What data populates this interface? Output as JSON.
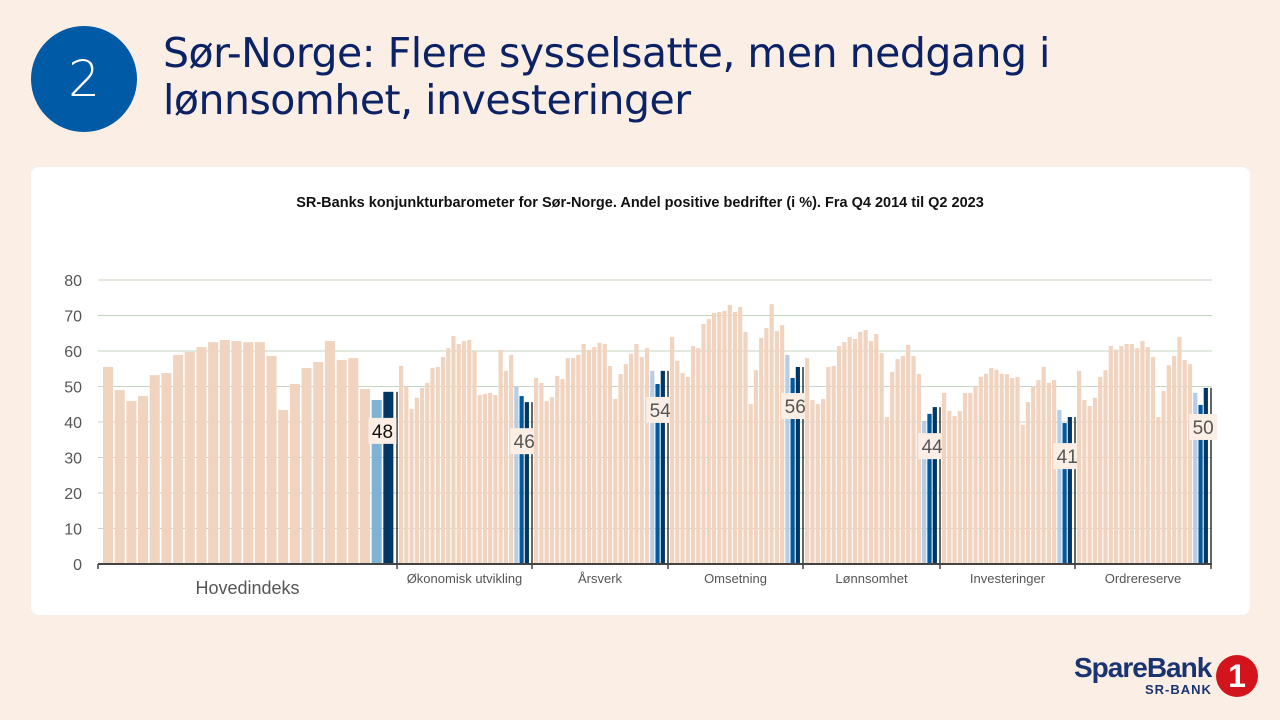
{
  "header": {
    "badge_number": "2",
    "title": "Sør-Norge: Flere sysselsatte, men nedgang i lønnsomhet, investeringer"
  },
  "logo": {
    "name": "SpareBank",
    "sub": "SR-BANK",
    "mark": "1"
  },
  "chart_data": {
    "type": "bar",
    "title": "SR-Banks konjunkturbarometer  for Sør-Norge.  Andel positive bedrifter (i %). Fra Q4 2014 til Q2 2023",
    "ylim": [
      0,
      80
    ],
    "yticks": [
      "0",
      "10",
      "20",
      "30",
      "40",
      "50",
      "60",
      "70",
      "80"
    ],
    "grid": true,
    "colors": {
      "history": "#f1d4bf",
      "hov_prev": "#7fb3d5",
      "prev2": "#b6cde8",
      "prev1": "#005aa0",
      "latest": "#003764",
      "grid": "#c5d6c0"
    },
    "groups": [
      {
        "name": "Hovedindeks",
        "label": "48",
        "values": [
          55.5,
          49,
          45.9,
          47.3,
          53.2,
          53.8,
          58.9,
          59.7,
          61.1,
          62.5,
          63.1,
          62.8,
          62.5,
          62.5,
          58.6,
          43.4,
          50.7,
          55.2,
          56.9,
          62.8,
          57.5,
          58,
          49.3,
          46.2,
          48.5
        ]
      },
      {
        "name": "Økonomisk utvikling",
        "label": "46",
        "values": [
          55.8,
          49.9,
          43.7,
          46.8,
          49.6,
          51,
          55.2,
          55.5,
          58.3,
          60.8,
          64.2,
          62,
          62.8,
          63.1,
          60,
          47.6,
          47.9,
          48.2,
          47.6,
          60.3,
          54.4,
          58.9,
          49.9,
          47.3,
          45.6
        ]
      },
      {
        "name": "Årsverk",
        "label": "54",
        "values": [
          52.4,
          51,
          45.9,
          47,
          53,
          52.1,
          58,
          58,
          58.9,
          62,
          60.3,
          61.1,
          62.3,
          62,
          55.8,
          46.5,
          53.5,
          56.3,
          59.2,
          62,
          58.3,
          60.8,
          54.4,
          50.7,
          54.4
        ]
      },
      {
        "name": "Omsetning",
        "label": "56",
        "values": [
          63.9,
          57.2,
          53.8,
          52.7,
          61.4,
          60.8,
          67.6,
          69,
          70.7,
          71,
          71.3,
          73,
          71,
          72.4,
          65.4,
          45.1,
          54.6,
          63.7,
          66.5,
          73.2,
          65.6,
          67.3,
          58.9,
          52.4,
          55.5
        ]
      },
      {
        "name": "Lønnsomhet",
        "label": "44",
        "values": [
          58,
          46.2,
          45.1,
          46.5,
          55.5,
          55.8,
          61.4,
          62.5,
          63.9,
          63.4,
          65.4,
          65.9,
          62.8,
          64.8,
          59.4,
          41.4,
          54.1,
          57.7,
          58.6,
          61.7,
          58.6,
          53.5,
          40.3,
          42.3,
          44.2
        ]
      },
      {
        "name": "Investeringer",
        "label": "41",
        "values": [
          48.2,
          43.1,
          41.7,
          43.1,
          48.2,
          48.2,
          49.9,
          52.7,
          53.6,
          55.2,
          54.7,
          53.6,
          53.5,
          52.4,
          52.7,
          39.2,
          45.6,
          50.1,
          51.8,
          55.5,
          51,
          51.8,
          43.4,
          39.7,
          41.4
        ]
      },
      {
        "name": "Ordrereserve",
        "label": "50",
        "values": [
          54.4,
          46.2,
          44.5,
          46.8,
          52.7,
          54.6,
          61.4,
          60.4,
          61.4,
          62,
          62,
          60.8,
          62.8,
          61.1,
          58.3,
          41.4,
          48.7,
          56,
          58.6,
          63.9,
          57.5,
          56.3,
          48.2,
          44.8,
          49.6
        ]
      }
    ]
  }
}
